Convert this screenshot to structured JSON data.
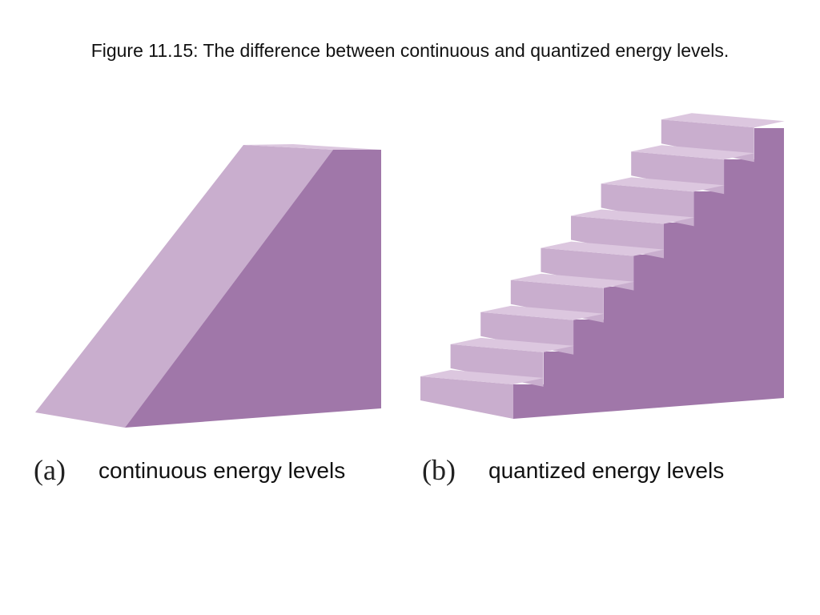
{
  "slide": {
    "title": "Figure 11.15:  The difference between continuous and quantized energy levels."
  },
  "panels": [
    {
      "letter": "(a)",
      "caption": "continuous energy levels",
      "shape": "ramp"
    },
    {
      "letter": "(b)",
      "caption": "quantized energy levels",
      "shape": "staircase",
      "steps": 9
    }
  ],
  "colors": {
    "light_face": "#c9aece",
    "dark_face": "#a077a9",
    "top_face": "#dcc7df",
    "background": "#ffffff"
  }
}
